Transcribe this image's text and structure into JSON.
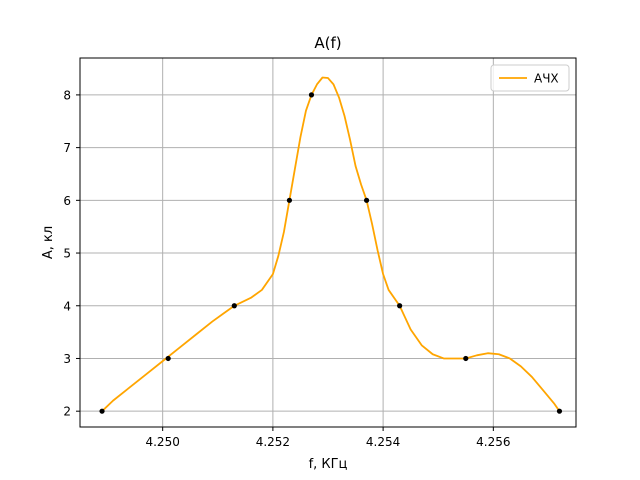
{
  "chart_data": {
    "type": "line",
    "title": "A(f)",
    "xlabel": "f, КГц",
    "ylabel": "A, кл",
    "xlim": [
      4.2485,
      4.2575
    ],
    "ylim": [
      1.7,
      8.7
    ],
    "xticks": [
      4.25,
      4.252,
      4.254,
      4.256
    ],
    "xtick_labels": [
      "4.250",
      "4.252",
      "4.254",
      "4.256"
    ],
    "yticks": [
      2,
      3,
      4,
      5,
      6,
      7,
      8
    ],
    "ytick_labels": [
      "2",
      "3",
      "4",
      "5",
      "6",
      "7",
      "8"
    ],
    "grid": true,
    "legend": {
      "placement": "top-right",
      "entries": [
        "АЧХ"
      ]
    },
    "series": [
      {
        "name": "АЧХ",
        "kind": "line",
        "color": "#ffa500",
        "x": [
          4.2489,
          4.2491,
          4.2494,
          4.2497,
          4.25,
          4.2503,
          4.2506,
          4.2509,
          4.2511,
          4.2513,
          4.2516,
          4.2518,
          4.252,
          4.2521,
          4.2522,
          4.2523,
          4.2524,
          4.2525,
          4.2526,
          4.2527,
          4.2528,
          4.2529,
          4.253,
          4.2531,
          4.2532,
          4.2533,
          4.2534,
          4.2535,
          4.2536,
          4.2537,
          4.2538,
          4.2539,
          4.254,
          4.2541,
          4.2543,
          4.2545,
          4.2547,
          4.2549,
          4.2551,
          4.2553,
          4.2555,
          4.2557,
          4.2559,
          4.2561,
          4.2563,
          4.2565,
          4.2567,
          4.2569,
          4.2571,
          4.2572
        ],
        "y": [
          2.0,
          2.2,
          2.45,
          2.7,
          2.95,
          3.2,
          3.45,
          3.7,
          3.85,
          4.0,
          4.15,
          4.3,
          4.6,
          4.95,
          5.4,
          6.0,
          6.6,
          7.2,
          7.7,
          8.0,
          8.2,
          8.33,
          8.32,
          8.2,
          7.95,
          7.6,
          7.15,
          6.65,
          6.3,
          6.0,
          5.55,
          5.05,
          4.6,
          4.3,
          4.0,
          3.55,
          3.25,
          3.08,
          3.0,
          3.0,
          3.0,
          3.06,
          3.1,
          3.08,
          3.0,
          2.85,
          2.65,
          2.4,
          2.15,
          2.0
        ]
      },
      {
        "name": "",
        "kind": "scatter",
        "color": "#000000",
        "x": [
          4.2489,
          4.2501,
          4.2513,
          4.2523,
          4.2527,
          4.2537,
          4.2543,
          4.2555,
          4.2572
        ],
        "y": [
          2,
          3,
          4,
          6,
          8,
          6,
          4,
          3,
          2
        ]
      }
    ]
  }
}
